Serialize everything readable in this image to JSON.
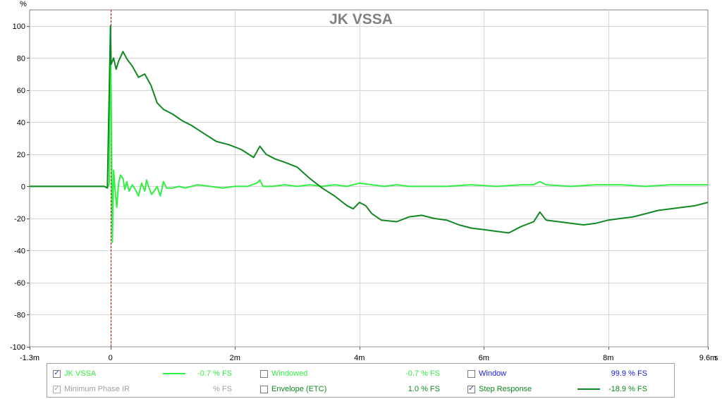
{
  "chart_data": {
    "type": "line",
    "title": "JK VSSA",
    "ylabel": "%",
    "x_unit": "s",
    "xlim": [
      -1.3,
      9.6
    ],
    "ylim": [
      -100,
      110
    ],
    "grid": true,
    "x_ticks": [
      {
        "v": -1.3,
        "label": "-1.3m"
      },
      {
        "v": 0,
        "label": "0"
      },
      {
        "v": 2,
        "label": "2m"
      },
      {
        "v": 4,
        "label": "4m"
      },
      {
        "v": 6,
        "label": "6m"
      },
      {
        "v": 8,
        "label": "8m"
      },
      {
        "v": 9.6,
        "label": "9.6m"
      }
    ],
    "y_ticks": [
      100,
      80,
      60,
      40,
      20,
      0,
      -20,
      -40,
      -60,
      -80,
      -100
    ],
    "marker_x": 0,
    "series": [
      {
        "name": "JK VSSA",
        "color": "#33ee44",
        "points": [
          [
            -1.3,
            0
          ],
          [
            -0.3,
            0
          ],
          [
            -0.1,
            0
          ],
          [
            -0.05,
            -1
          ],
          [
            -0.02,
            2
          ],
          [
            0,
            100
          ],
          [
            0.01,
            60
          ],
          [
            0.03,
            -35
          ],
          [
            0.05,
            10
          ],
          [
            0.08,
            -5
          ],
          [
            0.1,
            -13
          ],
          [
            0.13,
            2
          ],
          [
            0.16,
            7
          ],
          [
            0.2,
            5
          ],
          [
            0.23,
            -2
          ],
          [
            0.26,
            3
          ],
          [
            0.3,
            -3
          ],
          [
            0.35,
            1
          ],
          [
            0.4,
            -2
          ],
          [
            0.45,
            -6
          ],
          [
            0.5,
            2
          ],
          [
            0.55,
            -3
          ],
          [
            0.58,
            4
          ],
          [
            0.62,
            -1
          ],
          [
            0.66,
            -5
          ],
          [
            0.7,
            -3
          ],
          [
            0.75,
            0
          ],
          [
            0.8,
            -6
          ],
          [
            0.85,
            3
          ],
          [
            0.9,
            -1
          ],
          [
            1.0,
            -1
          ],
          [
            1.1,
            0
          ],
          [
            1.2,
            -1
          ],
          [
            1.4,
            1
          ],
          [
            1.6,
            0
          ],
          [
            1.8,
            -1
          ],
          [
            2.0,
            0
          ],
          [
            2.2,
            0
          ],
          [
            2.35,
            2
          ],
          [
            2.4,
            4
          ],
          [
            2.45,
            0
          ],
          [
            2.6,
            0
          ],
          [
            2.8,
            1
          ],
          [
            3.0,
            0
          ],
          [
            3.2,
            1
          ],
          [
            3.4,
            0
          ],
          [
            3.6,
            1
          ],
          [
            3.8,
            0
          ],
          [
            4.0,
            2
          ],
          [
            4.2,
            1
          ],
          [
            4.4,
            0
          ],
          [
            4.6,
            1
          ],
          [
            4.8,
            0
          ],
          [
            5.0,
            0
          ],
          [
            5.4,
            0
          ],
          [
            5.8,
            1
          ],
          [
            6.2,
            0
          ],
          [
            6.6,
            1
          ],
          [
            6.8,
            1
          ],
          [
            6.9,
            3
          ],
          [
            7.0,
            1
          ],
          [
            7.4,
            0
          ],
          [
            7.8,
            1
          ],
          [
            8.2,
            1
          ],
          [
            8.6,
            0
          ],
          [
            9.0,
            1
          ],
          [
            9.4,
            1
          ],
          [
            9.6,
            1
          ]
        ]
      },
      {
        "name": "Step Response",
        "color": "#118822",
        "points": [
          [
            -1.3,
            0
          ],
          [
            -0.1,
            0
          ],
          [
            -0.05,
            -1
          ],
          [
            0,
            100
          ],
          [
            0.01,
            76
          ],
          [
            0.05,
            80
          ],
          [
            0.09,
            73
          ],
          [
            0.13,
            78
          ],
          [
            0.2,
            84
          ],
          [
            0.27,
            79
          ],
          [
            0.35,
            75
          ],
          [
            0.45,
            68
          ],
          [
            0.55,
            70
          ],
          [
            0.65,
            63
          ],
          [
            0.75,
            52
          ],
          [
            0.85,
            48
          ],
          [
            1.0,
            45
          ],
          [
            1.15,
            41
          ],
          [
            1.3,
            38
          ],
          [
            1.5,
            33
          ],
          [
            1.7,
            28
          ],
          [
            1.9,
            26
          ],
          [
            2.1,
            23
          ],
          [
            2.3,
            18
          ],
          [
            2.4,
            25
          ],
          [
            2.5,
            20
          ],
          [
            2.65,
            17
          ],
          [
            2.8,
            15
          ],
          [
            3.0,
            12
          ],
          [
            3.2,
            5
          ],
          [
            3.4,
            -1
          ],
          [
            3.6,
            -6
          ],
          [
            3.8,
            -12
          ],
          [
            3.9,
            -14
          ],
          [
            4.0,
            -10
          ],
          [
            4.1,
            -12
          ],
          [
            4.2,
            -17
          ],
          [
            4.35,
            -21
          ],
          [
            4.6,
            -22
          ],
          [
            4.8,
            -19
          ],
          [
            5.0,
            -18
          ],
          [
            5.2,
            -20
          ],
          [
            5.4,
            -21
          ],
          [
            5.6,
            -24
          ],
          [
            5.8,
            -26
          ],
          [
            6.0,
            -27
          ],
          [
            6.2,
            -28
          ],
          [
            6.4,
            -29
          ],
          [
            6.6,
            -25
          ],
          [
            6.8,
            -22
          ],
          [
            6.9,
            -16
          ],
          [
            7.0,
            -21
          ],
          [
            7.2,
            -22
          ],
          [
            7.4,
            -23
          ],
          [
            7.6,
            -24
          ],
          [
            7.8,
            -23
          ],
          [
            8.0,
            -21
          ],
          [
            8.2,
            -20
          ],
          [
            8.4,
            -19
          ],
          [
            8.6,
            -17
          ],
          [
            8.8,
            -15
          ],
          [
            9.0,
            -14
          ],
          [
            9.2,
            -13
          ],
          [
            9.4,
            -12
          ],
          [
            9.6,
            -10
          ]
        ]
      }
    ]
  },
  "legend": {
    "rows": [
      [
        {
          "key": "jk",
          "label": "JK VSSA",
          "checked": true,
          "disabled": false,
          "label_color": "#33ee44",
          "swatch_color": "#33ee44",
          "value": "-0.7 % FS",
          "value_color": "#33ee44"
        },
        {
          "key": "windowed",
          "label": "Windowed",
          "checked": false,
          "disabled": false,
          "label_color": "#33ee44",
          "swatch_color": "",
          "value": "-0.7 % FS",
          "value_color": "#33ee44"
        },
        {
          "key": "window",
          "label": "Window",
          "checked": false,
          "disabled": false,
          "label_color": "#1a1aee",
          "swatch_color": "",
          "value": "99.9 % FS",
          "value_color": "#1a1aee"
        }
      ],
      [
        {
          "key": "minphase",
          "label": "Minimum Phase IR",
          "checked": true,
          "disabled": true,
          "label_color": "#a0a0a0",
          "swatch_color": "",
          "value": "% FS",
          "value_color": "#a0a0a0"
        },
        {
          "key": "envelope",
          "label": "Envelope (ETC)",
          "checked": false,
          "disabled": false,
          "label_color": "#118822",
          "swatch_color": "",
          "value": "1.0 % FS",
          "value_color": "#118822"
        },
        {
          "key": "step",
          "label": "Step Response",
          "checked": true,
          "disabled": false,
          "label_color": "#118822",
          "swatch_color": "#118822",
          "value": "-18.9 % FS",
          "value_color": "#118822"
        }
      ]
    ]
  }
}
